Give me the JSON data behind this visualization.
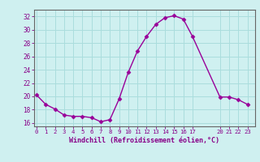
{
  "x": [
    0,
    1,
    2,
    3,
    4,
    5,
    6,
    7,
    8,
    9,
    10,
    11,
    12,
    13,
    14,
    15,
    16,
    17,
    20,
    21,
    22,
    23
  ],
  "y": [
    20.2,
    18.8,
    18.1,
    17.2,
    17.0,
    17.0,
    16.8,
    16.2,
    16.5,
    19.6,
    23.6,
    26.8,
    29.0,
    30.8,
    31.8,
    32.1,
    31.6,
    29.0,
    19.9,
    19.9,
    19.5,
    18.8
  ],
  "line_color": "#990099",
  "marker": "D",
  "marker_size": 2.5,
  "bg_color": "#cff0f0",
  "grid_color": "#aadddd",
  "xlabel": "Windchill (Refroidissement éolien,°C)",
  "xlabel_color": "#880088",
  "tick_color": "#880088",
  "ylim": [
    15.5,
    33.0
  ],
  "yticks": [
    16,
    18,
    20,
    22,
    24,
    26,
    28,
    30,
    32
  ],
  "xticks": [
    0,
    1,
    2,
    3,
    4,
    5,
    6,
    7,
    8,
    9,
    10,
    11,
    12,
    13,
    14,
    15,
    16,
    17,
    20,
    21,
    22,
    23
  ],
  "xlim": [
    -0.3,
    23.8
  ]
}
